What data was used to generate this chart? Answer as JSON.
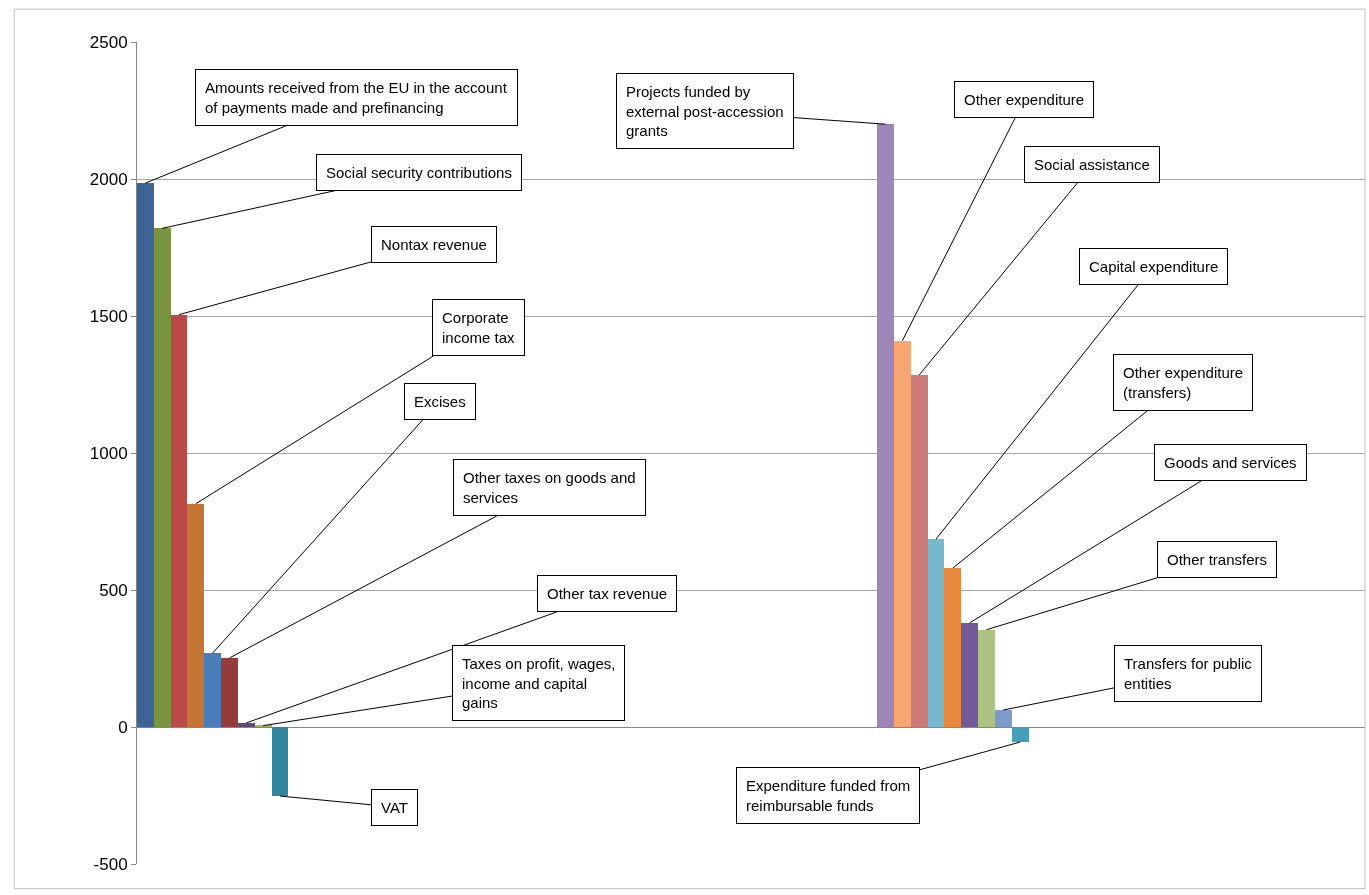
{
  "chart_data": {
    "type": "bar",
    "categories": [
      null,
      null,
      null,
      null,
      null,
      null,
      null,
      null,
      null,
      null,
      null,
      null,
      null,
      null,
      null,
      null,
      null,
      null,
      null,
      null,
      null,
      null,
      null,
      null,
      null,
      null,
      null,
      null,
      null,
      null,
      null,
      null,
      null,
      null,
      null,
      null,
      null,
      null,
      null,
      null,
      null,
      null,
      null,
      null,
      null,
      null,
      null,
      null,
      null,
      null,
      null,
      null,
      null,
      null,
      null,
      null,
      null,
      null,
      null,
      null,
      null,
      null,
      null,
      null,
      null,
      null,
      null,
      null,
      null,
      null,
      null,
      null,
      null
    ],
    "values": [
      1985,
      1820,
      1505,
      815,
      270,
      252,
      15,
      5,
      -252,
      null,
      null,
      null,
      null,
      null,
      null,
      null,
      null,
      null,
      null,
      null,
      null,
      null,
      null,
      null,
      null,
      null,
      null,
      null,
      null,
      null,
      null,
      null,
      null,
      null,
      null,
      null,
      null,
      null,
      null,
      null,
      null,
      null,
      null,
      null,
      2200,
      1410,
      1285,
      686,
      580,
      380,
      355,
      62,
      -55,
      null,
      null,
      null,
      null,
      null,
      null,
      null,
      null,
      null,
      null,
      null,
      null,
      null,
      null,
      null,
      null,
      null,
      null,
      null,
      null
    ],
    "colors": [
      "#3d6497",
      "#7a9442",
      "#b94a48",
      "#c47533",
      "#4a7ebb",
      "#943c3c",
      "#604a7b",
      "#9bbb59",
      "#31859c",
      null,
      null,
      null,
      null,
      null,
      null,
      null,
      null,
      null,
      null,
      null,
      null,
      null,
      null,
      null,
      null,
      null,
      null,
      null,
      null,
      null,
      null,
      null,
      null,
      null,
      null,
      null,
      null,
      null,
      null,
      null,
      null,
      null,
      null,
      null,
      "#9b86b7",
      "#f5a672",
      "#cd7b79",
      "#78b8cf",
      "#e88a3e",
      "#735a98",
      "#abc484",
      "#7b9bcc",
      "#43a0b8",
      null,
      null,
      null,
      null,
      null,
      null,
      null,
      null,
      null,
      null,
      null,
      null,
      null,
      null,
      null,
      null,
      null,
      null,
      null,
      null
    ],
    "ylim": [
      -500,
      2500
    ],
    "yticks": [
      -500,
      0,
      500,
      1000,
      1500,
      2000,
      2500
    ],
    "grid": "y",
    "annotations": [
      "Amounts received from the EU in the account of payments made and prefinancing",
      "Social security contributions",
      "Nontax revenue",
      "Corporate income tax",
      "Excises",
      "Other taxes on goods and services",
      "Other tax revenue",
      "Taxes on profit, wages, income and capital gains",
      "VAT",
      "Projects funded by external post-accession grants",
      "Other expenditure",
      "Social assistance",
      "Capital expenditure",
      "Other expenditure (transfers)",
      "Goods and services",
      "Other transfers",
      "Transfers for public entities",
      "Expenditure funded from reimbursable funds"
    ]
  }
}
